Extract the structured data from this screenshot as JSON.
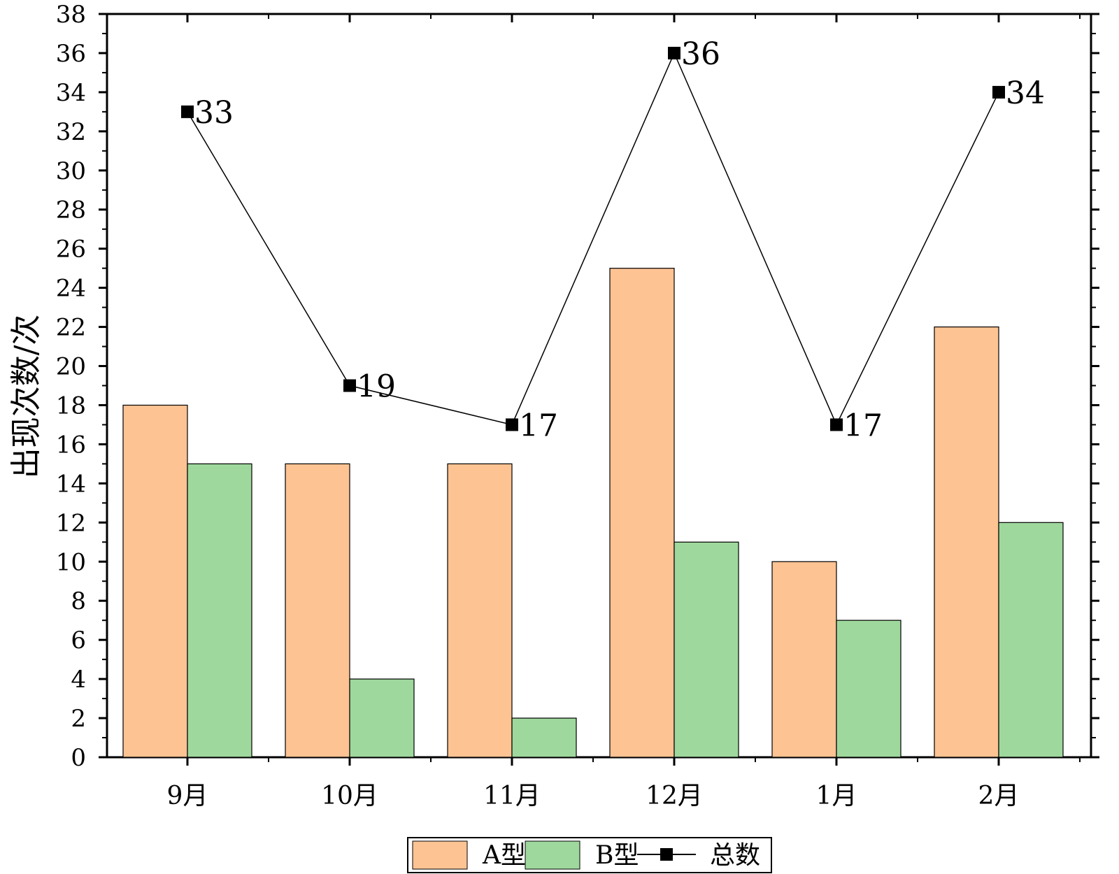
{
  "chart_data": {
    "type": "bar",
    "categories": [
      "9月",
      "10月",
      "11月",
      "12月",
      "1月",
      "2月"
    ],
    "series": [
      {
        "name": "A型",
        "kind": "bar",
        "color": "#FDC393",
        "values": [
          18,
          15,
          15,
          25,
          10,
          22
        ]
      },
      {
        "name": "B型",
        "kind": "bar",
        "color": "#9ED89D",
        "values": [
          15,
          4,
          2,
          11,
          7,
          12
        ]
      },
      {
        "name": "总数",
        "kind": "line",
        "color": "#000000",
        "values": [
          33,
          19,
          17,
          36,
          17,
          34
        ]
      }
    ],
    "ylabel": "出现次数/次",
    "xlabel": "",
    "title": "",
    "ylim": [
      0,
      38
    ],
    "ytick_step": 2,
    "legend_position": "bottom-center",
    "grid": false
  }
}
